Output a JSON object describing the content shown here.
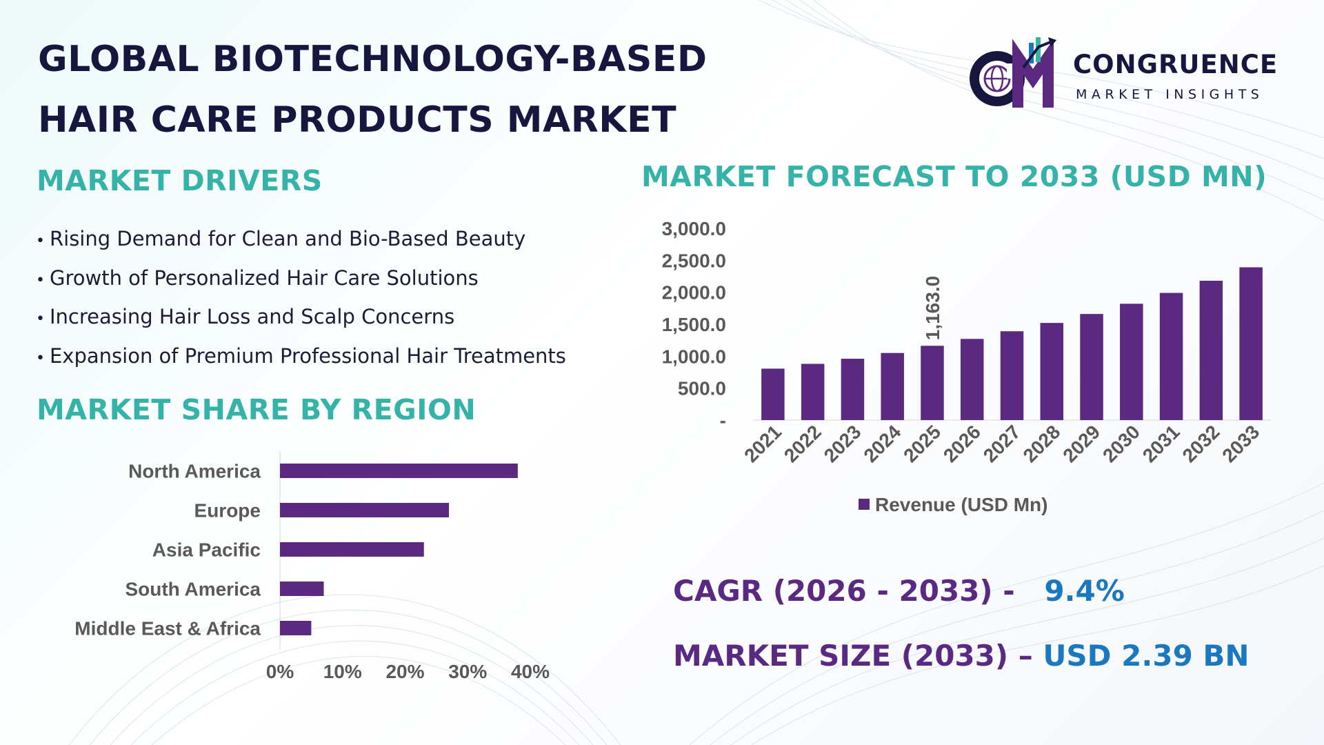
{
  "header": {
    "title_line1": "GLOBAL BIOTECHNOLOGY-BASED",
    "title_line2": "HAIR CARE PRODUCTS MARKET"
  },
  "logo": {
    "name": "CONGRUENCE",
    "subtitle": "MARKET INSIGHTS",
    "mark": "CM"
  },
  "drivers": {
    "heading": "MARKET DRIVERS",
    "items": [
      "Rising Demand for Clean and Bio-Based Beauty",
      "Growth of Personalized Hair Care Solutions",
      "Increasing Hair Loss and Scalp Concerns",
      "Expansion of Premium Professional Hair Treatments"
    ]
  },
  "region": {
    "heading": "MARKET SHARE BY REGION"
  },
  "forecast": {
    "heading": "MARKET FORECAST TO 2033 (USD MN)"
  },
  "stats": {
    "cagr_label": "CAGR (2026 - 2033) -",
    "cagr_value": "9.4%",
    "size_label": "MARKET SIZE (2033) –",
    "size_value": "USD 2.39 BN"
  },
  "colors": {
    "bar": "#5b2a80",
    "heading_teal": "#36b3a8",
    "title_navy": "#17163f",
    "stat_purple": "#5a2a82",
    "stat_blue": "#1a78bf",
    "axis_text": "#595959"
  },
  "chart_data": [
    {
      "type": "bar",
      "orientation": "horizontal",
      "categories": [
        "North America",
        "Europe",
        "Asia Pacific",
        "South America",
        "Middle East & Africa"
      ],
      "values": [
        38,
        27,
        23,
        7,
        5
      ],
      "unit": "%",
      "xlim": [
        0,
        40
      ],
      "xticks": [
        "0%",
        "10%",
        "20%",
        "30%",
        "40%"
      ],
      "grid": false
    },
    {
      "type": "bar",
      "orientation": "vertical",
      "categories": [
        "2021",
        "2022",
        "2023",
        "2024",
        "2025",
        "2026",
        "2027",
        "2028",
        "2029",
        "2030",
        "2031",
        "2032",
        "2033"
      ],
      "series": [
        {
          "name": "Revenue (USD Mn)",
          "values": [
            805,
            880,
            960,
            1050,
            1163,
            1270,
            1390,
            1520,
            1660,
            1820,
            1990,
            2180,
            2390
          ]
        }
      ],
      "data_labels": [
        {
          "category": "2025",
          "text": "1,163.0"
        }
      ],
      "ylim": [
        0,
        3000
      ],
      "yticks": [
        "-",
        "500.0",
        "1,000.0",
        "1,500.0",
        "2,000.0",
        "2,500.0",
        "3,000.0"
      ],
      "legend": "bottom",
      "grid": false
    }
  ]
}
